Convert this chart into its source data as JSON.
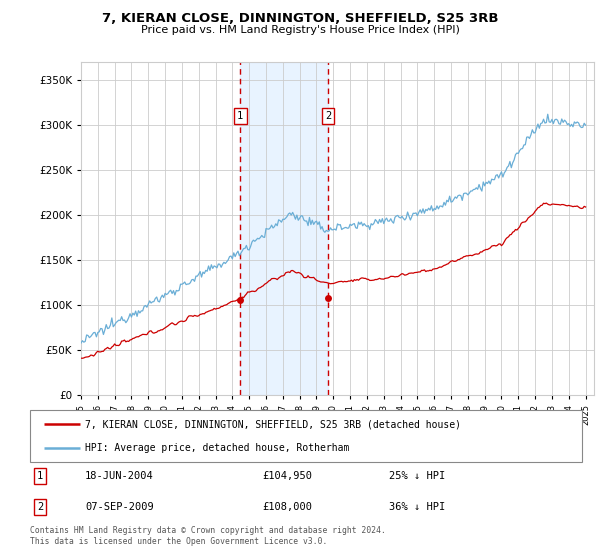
{
  "title1": "7, KIERAN CLOSE, DINNINGTON, SHEFFIELD, S25 3RB",
  "title2": "Price paid vs. HM Land Registry's House Price Index (HPI)",
  "legend_line1": "7, KIERAN CLOSE, DINNINGTON, SHEFFIELD, S25 3RB (detached house)",
  "legend_line2": "HPI: Average price, detached house, Rotherham",
  "footnote": "Contains HM Land Registry data © Crown copyright and database right 2024.\nThis data is licensed under the Open Government Licence v3.0.",
  "sale1_date": "18-JUN-2004",
  "sale1_price": "£104,950",
  "sale1_hpi": "25% ↓ HPI",
  "sale2_date": "07-SEP-2009",
  "sale2_price": "£108,000",
  "sale2_hpi": "36% ↓ HPI",
  "ylim": [
    0,
    370000
  ],
  "sale1_year": 2004.47,
  "sale1_value": 104950,
  "sale2_year": 2009.69,
  "sale2_value": 108000,
  "hpi_color": "#6aaed6",
  "price_color": "#cc0000",
  "vline_color": "#cc0000",
  "shade_color": "#ddeeff",
  "background_color": "#ffffff",
  "grid_color": "#cccccc"
}
